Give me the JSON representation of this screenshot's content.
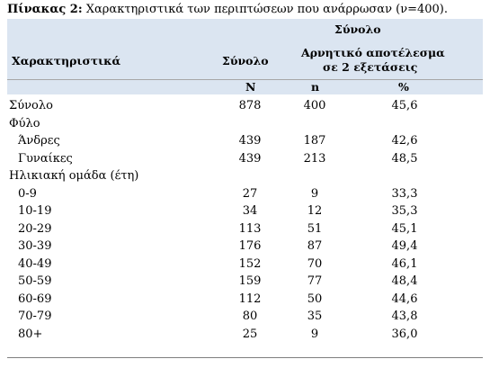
{
  "caption": {
    "label": "Πίνακας 2:",
    "text": " Χαρακτηριστικά των περιπτώσεων που ανάρρωσαν (ν=400)."
  },
  "header": {
    "group_title": "Σύνολο",
    "col_characteristics": "Χαρακτηριστικά",
    "col_total": "Σύνολο",
    "col_negative_line1": "Αρνητικό αποτέλεσμα",
    "col_negative_line2": "σε 2 εξετάσεις",
    "sub_N": "N",
    "sub_n": "n",
    "sub_pct": "%"
  },
  "rows": [
    {
      "label": "Σύνολο",
      "N": "878",
      "n": "400",
      "pct": "45,6",
      "indent": false
    },
    {
      "label": "Φύλο",
      "N": "",
      "n": "",
      "pct": "",
      "indent": false
    },
    {
      "label": "Άνδρες",
      "N": "439",
      "n": "187",
      "pct": "42,6",
      "indent": true
    },
    {
      "label": "Γυναίκες",
      "N": "439",
      "n": "213",
      "pct": "48,5",
      "indent": true
    },
    {
      "label": "Ηλικιακή ομάδα  (έτη)",
      "N": "",
      "n": "",
      "pct": "",
      "indent": false
    },
    {
      "label": "0-9",
      "N": "27",
      "n": "9",
      "pct": "33,3",
      "indent": true
    },
    {
      "label": "10-19",
      "N": "34",
      "n": "12",
      "pct": "35,3",
      "indent": true
    },
    {
      "label": "20-29",
      "N": "113",
      "n": "51",
      "pct": "45,1",
      "indent": true
    },
    {
      "label": "30-39",
      "N": "176",
      "n": "87",
      "pct": "49,4",
      "indent": true
    },
    {
      "label": "40-49",
      "N": "152",
      "n": "70",
      "pct": "46,1",
      "indent": true
    },
    {
      "label": "50-59",
      "N": "159",
      "n": "77",
      "pct": "48,4",
      "indent": true
    },
    {
      "label": "60-69",
      "N": "112",
      "n": "50",
      "pct": "44,6",
      "indent": true
    },
    {
      "label": "70-79",
      "N": "80",
      "n": "35",
      "pct": "43,8",
      "indent": true
    },
    {
      "label": "80+",
      "N": "25",
      "n": "9",
      "pct": "36,0",
      "indent": true
    }
  ]
}
